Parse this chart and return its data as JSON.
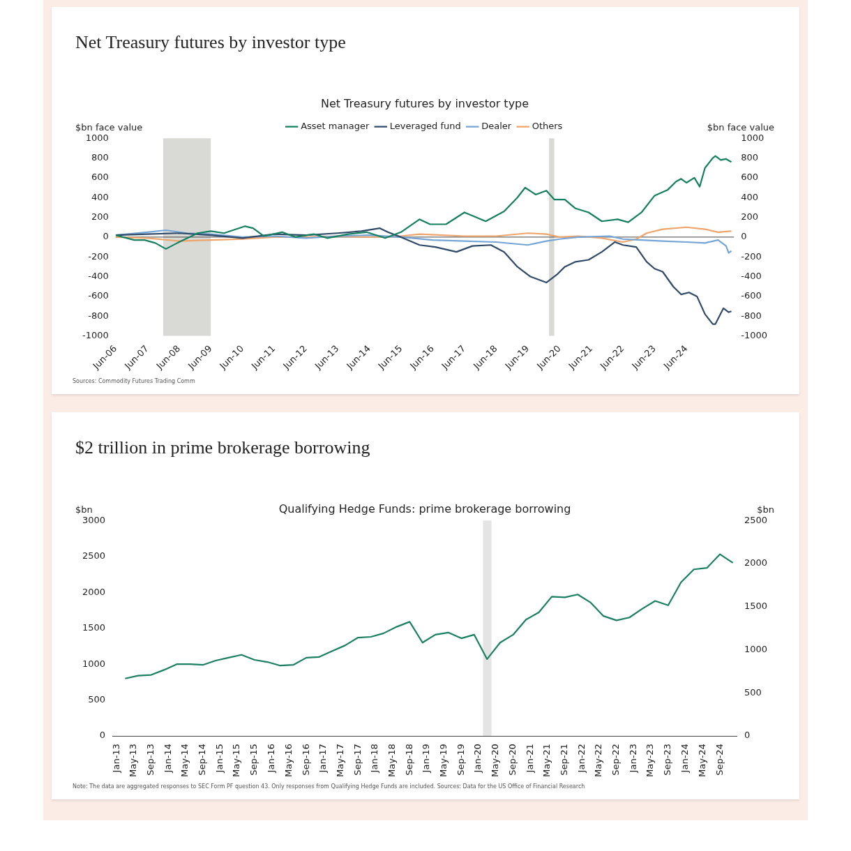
{
  "chart_data": [
    {
      "type": "line",
      "title": "Net Treasury futures by investor type",
      "subtitle": "Net Treasury futures by investor type",
      "ylabel": "$bn face value",
      "y2label": "$bn face value",
      "legend": "top",
      "grid": false,
      "xlim": [
        "2006-06",
        "2025-12"
      ],
      "xticks": [
        {
          "value": "2006-06",
          "label": "Jun-06"
        },
        {
          "value": "2007-06",
          "label": "Jun-07"
        },
        {
          "value": "2008-06",
          "label": "Jun-08"
        },
        {
          "value": "2009-06",
          "label": "Jun-09"
        },
        {
          "value": "2010-06",
          "label": "Jun-10"
        },
        {
          "value": "2011-06",
          "label": "Jun-11"
        },
        {
          "value": "2012-06",
          "label": "Jun-12"
        },
        {
          "value": "2013-06",
          "label": "Jun-13"
        },
        {
          "value": "2014-06",
          "label": "Jun-14"
        },
        {
          "value": "2015-06",
          "label": "Jun-15"
        },
        {
          "value": "2016-06",
          "label": "Jun-16"
        },
        {
          "value": "2017-06",
          "label": "Jun-17"
        },
        {
          "value": "2018-06",
          "label": "Jun-18"
        },
        {
          "value": "2019-06",
          "label": "Jun-19"
        },
        {
          "value": "2020-06",
          "label": "Jun-20"
        },
        {
          "value": "2021-06",
          "label": "Jun-21"
        },
        {
          "value": "2022-06",
          "label": "Jun-22"
        },
        {
          "value": "2023-06",
          "label": "Jun-23"
        },
        {
          "value": "2024-06",
          "label": "Jun-24"
        }
      ],
      "ylim": [
        -1000,
        1000
      ],
      "yticks": [
        -1000,
        -800,
        -600,
        -400,
        -200,
        0,
        200,
        400,
        600,
        800,
        1000
      ],
      "y2lim": [
        -1000,
        1000
      ],
      "y2ticks": [
        -1000,
        -800,
        -600,
        -400,
        -200,
        0,
        200,
        400,
        600,
        800,
        1000
      ],
      "ref_lines": [
        {
          "axis": "y",
          "value": 0,
          "color": "#444444"
        }
      ],
      "bands": [
        {
          "axis": "x",
          "from": "2007-12",
          "to": "2009-06",
          "color": "#d9dad5"
        },
        {
          "axis": "x",
          "from": "2020-02",
          "to": "2020-04",
          "color": "#d9dad5"
        }
      ],
      "series": [
        {
          "name": "Asset manager",
          "color": "#15805f",
          "x": [
            "2006-06",
            "2007-01",
            "2007-05",
            "2007-09",
            "2008-01",
            "2008-06",
            "2009-01",
            "2009-06",
            "2009-11",
            "2010-07",
            "2010-10",
            "2011-02",
            "2011-09",
            "2012-02",
            "2012-09",
            "2013-02",
            "2013-10",
            "2014-05",
            "2014-12",
            "2015-06",
            "2016-01",
            "2016-05",
            "2016-11",
            "2017-06",
            "2018-02",
            "2018-09",
            "2019-02",
            "2019-05",
            "2019-09",
            "2020-01",
            "2020-04",
            "2020-08",
            "2020-12",
            "2021-05",
            "2021-10",
            "2022-04",
            "2022-08",
            "2023-01",
            "2023-06",
            "2023-11",
            "2024-02",
            "2024-04",
            "2024-06",
            "2024-09",
            "2024-11",
            "2025-01",
            "2025-04",
            "2025-05",
            "2025-07",
            "2025-09",
            "2025-11"
          ],
          "values": [
            20,
            -30,
            -30,
            -60,
            -120,
            -50,
            40,
            60,
            40,
            110,
            90,
            10,
            50,
            0,
            30,
            -10,
            30,
            50,
            -10,
            50,
            180,
            130,
            130,
            250,
            160,
            260,
            400,
            500,
            430,
            470,
            380,
            380,
            290,
            250,
            160,
            180,
            150,
            250,
            420,
            480,
            560,
            590,
            550,
            600,
            510,
            700,
            800,
            820,
            780,
            790,
            760
          ]
        },
        {
          "name": "Leveraged fund",
          "color": "#2f4a68",
          "x": [
            "2006-06",
            "2007-06",
            "2008-06",
            "2009-06",
            "2010-06",
            "2011-06",
            "2012-06",
            "2013-06",
            "2014-03",
            "2014-10",
            "2015-01",
            "2015-06",
            "2016-01",
            "2016-07",
            "2017-03",
            "2017-09",
            "2018-04",
            "2018-09",
            "2019-02",
            "2019-07",
            "2020-01",
            "2020-05",
            "2020-08",
            "2020-12",
            "2021-05",
            "2021-10",
            "2022-03",
            "2022-06",
            "2022-11",
            "2023-03",
            "2023-06",
            "2023-09",
            "2024-01",
            "2024-04",
            "2024-07",
            "2024-10",
            "2025-01",
            "2025-04",
            "2025-05",
            "2025-08",
            "2025-10",
            "2025-11"
          ],
          "values": [
            20,
            30,
            40,
            20,
            -10,
            30,
            20,
            40,
            60,
            90,
            50,
            0,
            -80,
            -100,
            -150,
            -90,
            -80,
            -150,
            -300,
            -400,
            -460,
            -380,
            -300,
            -250,
            -230,
            -150,
            -50,
            -80,
            -100,
            -250,
            -320,
            -350,
            -500,
            -580,
            -560,
            -600,
            -780,
            -880,
            -880,
            -720,
            -760,
            -750
          ]
        },
        {
          "name": "Dealer",
          "color": "#74a5d6",
          "x": [
            "2006-06",
            "2007-06",
            "2008-01",
            "2008-09",
            "2009-06",
            "2010-06",
            "2011-06",
            "2012-06",
            "2013-06",
            "2014-06",
            "2015-06",
            "2016-06",
            "2017-06",
            "2018-06",
            "2019-06",
            "2020-01",
            "2020-06",
            "2021-01",
            "2022-01",
            "2022-06",
            "2023-01",
            "2023-09",
            "2024-06",
            "2025-01",
            "2025-06",
            "2025-09",
            "2025-10",
            "2025-11"
          ],
          "values": [
            20,
            50,
            70,
            40,
            30,
            0,
            10,
            -10,
            10,
            20,
            0,
            -30,
            -40,
            -50,
            -80,
            -40,
            -20,
            0,
            10,
            -20,
            -30,
            -40,
            -50,
            -60,
            -30,
            -90,
            -160,
            -140
          ]
        },
        {
          "name": "Others",
          "color": "#eea46a",
          "x": [
            "2006-06",
            "2007-06",
            "2008-06",
            "2009-06",
            "2010-06",
            "2011-06",
            "2012-06",
            "2013-06",
            "2014-06",
            "2015-06",
            "2016-01",
            "2017-06",
            "2018-06",
            "2019-06",
            "2020-01",
            "2020-06",
            "2021-01",
            "2021-10",
            "2022-06",
            "2022-11",
            "2023-03",
            "2023-09",
            "2024-06",
            "2025-01",
            "2025-06",
            "2025-11"
          ],
          "values": [
            0,
            -10,
            -40,
            -30,
            -20,
            0,
            0,
            10,
            0,
            10,
            30,
            10,
            10,
            40,
            30,
            0,
            10,
            -10,
            -50,
            -20,
            40,
            80,
            100,
            80,
            50,
            60
          ]
        }
      ],
      "annotations": [
        "Sources: Commodity Futures Trading Comm"
      ]
    },
    {
      "type": "line",
      "title": "$2 trillion in prime brokerage borrowing",
      "subtitle": "Qualifying Hedge Funds: prime brokerage borrowing",
      "ylabel": "$bn",
      "y2label": "$bn",
      "grid": false,
      "legend": false,
      "xlim": [
        "2012-12",
        "2025-01"
      ],
      "xticks": [
        {
          "value": "2013-01",
          "label": "Jan-13"
        },
        {
          "value": "2013-05",
          "label": "May-13"
        },
        {
          "value": "2013-09",
          "label": "Sep-13"
        },
        {
          "value": "2014-01",
          "label": "Jan-14"
        },
        {
          "value": "2014-05",
          "label": "May-14"
        },
        {
          "value": "2014-09",
          "label": "Sep-14"
        },
        {
          "value": "2015-01",
          "label": "Jan-15"
        },
        {
          "value": "2015-05",
          "label": "May-15"
        },
        {
          "value": "2015-09",
          "label": "Sep-15"
        },
        {
          "value": "2016-01",
          "label": "Jan-16"
        },
        {
          "value": "2016-05",
          "label": "May-16"
        },
        {
          "value": "2016-09",
          "label": "Sep-16"
        },
        {
          "value": "2017-01",
          "label": "Jan-17"
        },
        {
          "value": "2017-05",
          "label": "May-17"
        },
        {
          "value": "2017-09",
          "label": "Sep-17"
        },
        {
          "value": "2018-01",
          "label": "Jan-18"
        },
        {
          "value": "2018-05",
          "label": "May-18"
        },
        {
          "value": "2018-09",
          "label": "Sep-18"
        },
        {
          "value": "2019-01",
          "label": "Jan-19"
        },
        {
          "value": "2019-05",
          "label": "May-19"
        },
        {
          "value": "2019-09",
          "label": "Sep-19"
        },
        {
          "value": "2020-01",
          "label": "Jan-20"
        },
        {
          "value": "2020-05",
          "label": "May-20"
        },
        {
          "value": "2020-09",
          "label": "Sep-20"
        },
        {
          "value": "2021-01",
          "label": "Jan-21"
        },
        {
          "value": "2021-05",
          "label": "May-21"
        },
        {
          "value": "2021-09",
          "label": "Sep-21"
        },
        {
          "value": "2022-01",
          "label": "Jan-22"
        },
        {
          "value": "2022-05",
          "label": "May-22"
        },
        {
          "value": "2022-09",
          "label": "Sep-22"
        },
        {
          "value": "2023-01",
          "label": "Jan-23"
        },
        {
          "value": "2023-05",
          "label": "May-23"
        },
        {
          "value": "2023-09",
          "label": "Sep-23"
        },
        {
          "value": "2024-01",
          "label": "Jan-24"
        },
        {
          "value": "2024-05",
          "label": "May-24"
        },
        {
          "value": "2024-09",
          "label": "Sep-24"
        }
      ],
      "ylim": [
        0,
        3000
      ],
      "yticks": [
        0,
        500,
        1000,
        1500,
        2000,
        2500,
        3000
      ],
      "y2lim": [
        0,
        2500
      ],
      "y2ticks": [
        0,
        500,
        1000,
        1500,
        2000,
        2500
      ],
      "bands": [
        {
          "axis": "x",
          "from": "2020-02",
          "to": "2020-04",
          "color": "#e4e4e4"
        }
      ],
      "series": [
        {
          "color": "#1a7f63",
          "x": [
            "2013-03",
            "2013-06",
            "2013-09",
            "2013-12",
            "2014-03",
            "2014-06",
            "2014-09",
            "2014-12",
            "2015-03",
            "2015-06",
            "2015-09",
            "2015-12",
            "2016-03",
            "2016-06",
            "2016-09",
            "2016-12",
            "2017-03",
            "2017-06",
            "2017-09",
            "2017-12",
            "2018-03",
            "2018-06",
            "2018-09",
            "2018-12",
            "2019-03",
            "2019-06",
            "2019-09",
            "2019-12",
            "2020-03",
            "2020-06",
            "2020-09",
            "2020-12",
            "2021-03",
            "2021-06",
            "2021-09",
            "2021-12",
            "2022-03",
            "2022-06",
            "2022-09",
            "2022-12",
            "2023-03",
            "2023-06",
            "2023-09",
            "2023-12",
            "2024-03",
            "2024-06",
            "2024-09",
            "2024-12"
          ],
          "values": [
            800,
            840,
            850,
            920,
            1000,
            1000,
            990,
            1050,
            1090,
            1130,
            1060,
            1030,
            980,
            990,
            1090,
            1100,
            1180,
            1260,
            1370,
            1380,
            1430,
            1520,
            1590,
            1300,
            1410,
            1440,
            1360,
            1410,
            1070,
            1300,
            1410,
            1620,
            1720,
            1940,
            1930,
            1970,
            1860,
            1670,
            1610,
            1650,
            1770,
            1880,
            1820,
            2140,
            2320,
            2340,
            2530,
            2410
          ]
        }
      ],
      "annotations": [
        "Note: The data are aggregated responses to SEC Form PF question 43. Only responses from Qualifying Hedge Funds are included. Sources: Data for the US Office of Financial Research"
      ]
    }
  ]
}
